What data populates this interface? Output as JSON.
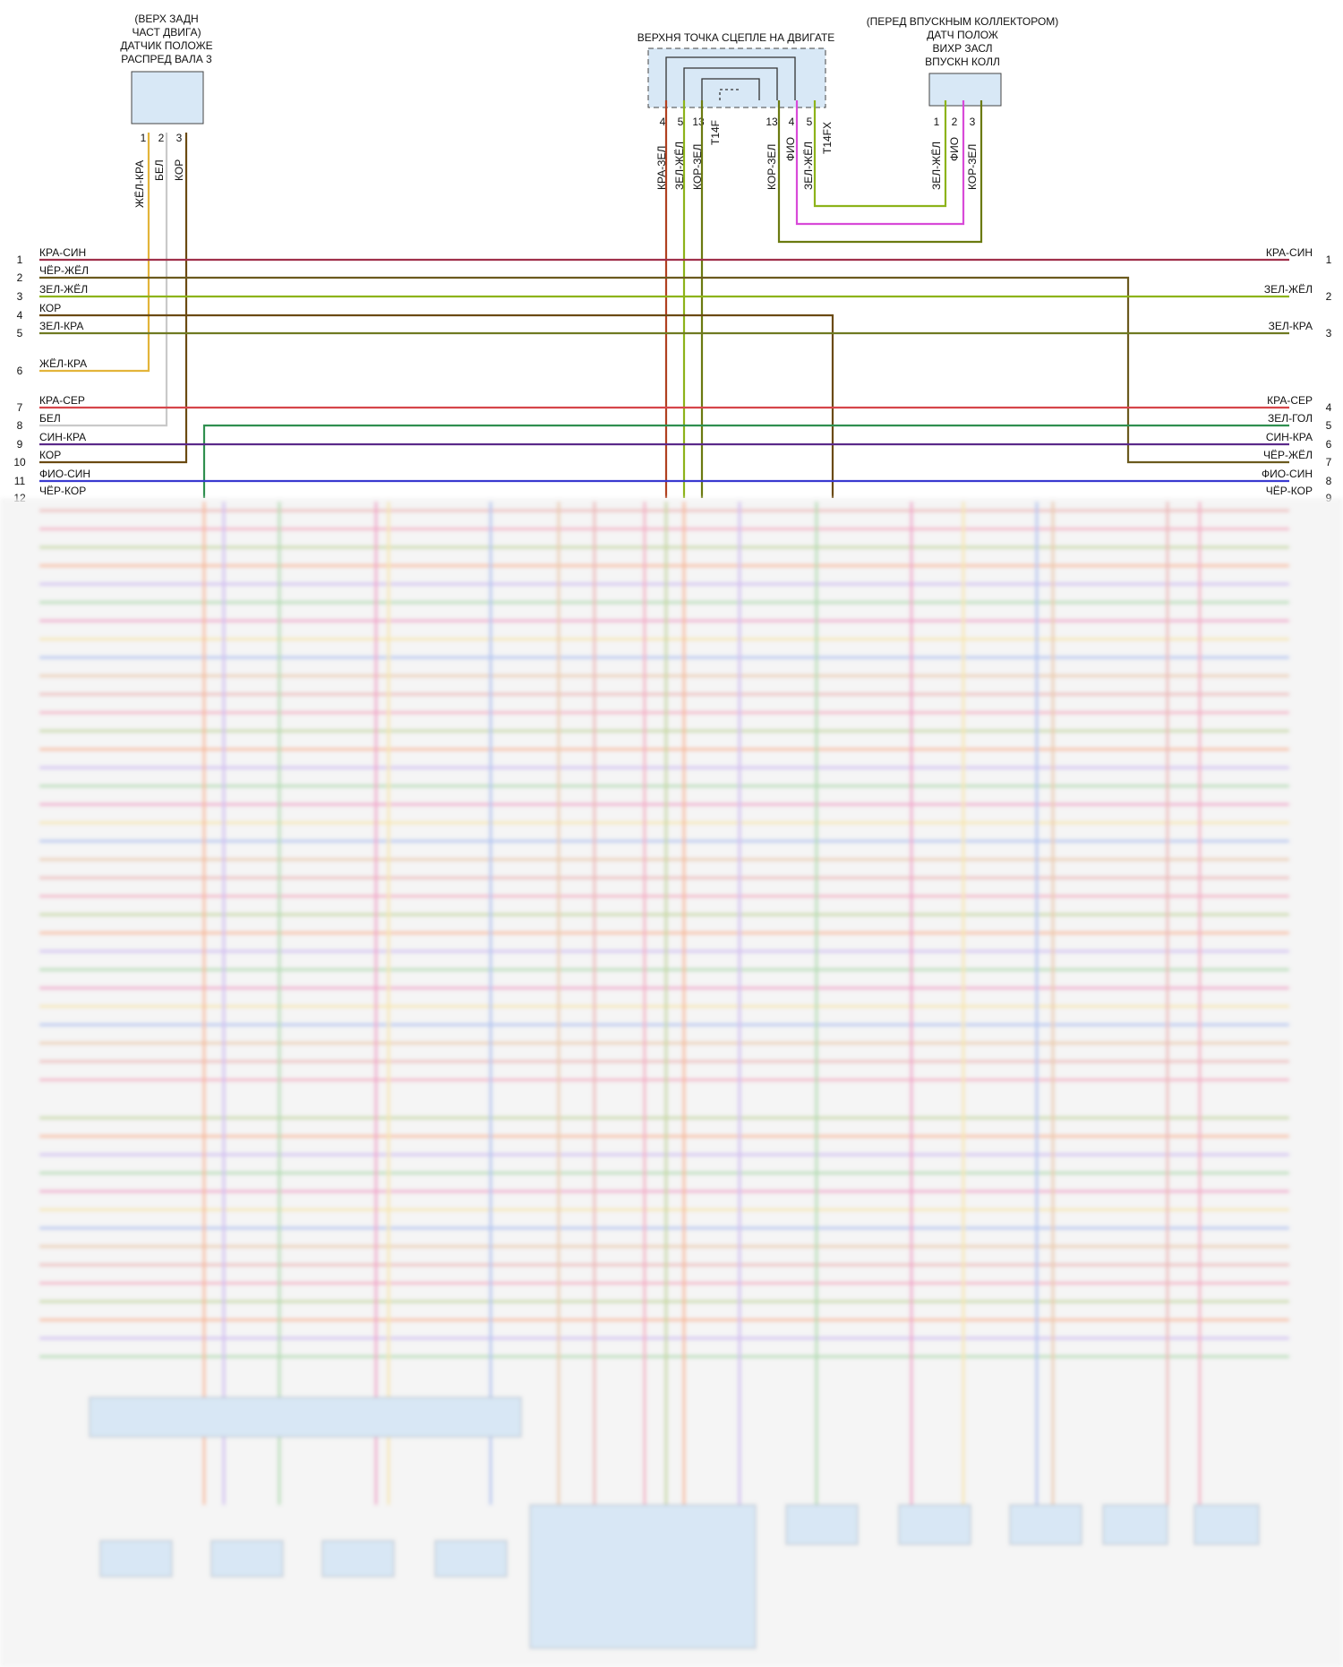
{
  "components": {
    "cam_sensor": {
      "label_lines": [
        "(ВЕРХ ЗАДН",
        "ЧАСТ ДВИГА)",
        "ДАТЧИК ПОЛОЖЕ",
        "РАСПРЕД ВАЛА 3"
      ],
      "pins": [
        "1",
        "2",
        "3"
      ],
      "wires": [
        "ЖЁЛ-КРА",
        "БЕЛ",
        "КОР"
      ]
    },
    "upper_ground": {
      "label": "ВЕРХНЯ ТОЧКА СЦЕПЛЕ НА ДВИГАТЕ",
      "left_pins": [
        "4",
        "5",
        "13"
      ],
      "left_wires": [
        "КРА-ЗЕЛ",
        "ЗЕЛ-ЖЁЛ",
        "КОР-ЗЕЛ"
      ],
      "left_connector": "T14F",
      "right_pins": [
        "13",
        "4",
        "5"
      ],
      "right_wires": [
        "КОР-ЗЕЛ",
        "ФИО",
        "ЗЕЛ-ЖЁЛ"
      ],
      "right_connector": "T14FX"
    },
    "swirl_sensor": {
      "label_lines": [
        "(ПЕРЕД ВПУСКНЫМ КОЛЛЕКТОРОМ)",
        "ДАТЧ ПОЛОЖ",
        "ВИХР ЗАСЛ",
        "ВПУСКН КОЛЛ"
      ],
      "pins": [
        "1",
        "2",
        "3"
      ],
      "wires": [
        "ЗЕЛ-ЖЁЛ",
        "ФИО",
        "КОР-ЗЕЛ"
      ]
    }
  },
  "left_rows": [
    {
      "num": "1",
      "label": "КРА-СИН",
      "color": "#a0304a"
    },
    {
      "num": "2",
      "label": "ЧЁР-ЖЁЛ",
      "color": "#6b5a1e"
    },
    {
      "num": "3",
      "label": "ЗЕЛ-ЖЁЛ",
      "color": "#8db31a"
    },
    {
      "num": "4",
      "label": "КОР",
      "color": "#6b4a12"
    },
    {
      "num": "5",
      "label": "ЗЕЛ-КРА",
      "color": "#6f7a22"
    },
    {
      "num": "6",
      "label": "ЖЁЛ-КРА",
      "color": "#e3b43a"
    },
    {
      "num": "7",
      "label": "КРА-СЕР",
      "color": "#d6454a"
    },
    {
      "num": "8",
      "label": "БЕЛ",
      "color": "#c9c9c9"
    },
    {
      "num": "9",
      "label": "СИН-КРА",
      "color": "#5b2a8a"
    },
    {
      "num": "10",
      "label": "КОР",
      "color": "#6b4a12"
    },
    {
      "num": "11",
      "label": "ФИО-СИН",
      "color": "#3a3ad0"
    },
    {
      "num": "12",
      "label": "ЧЁР-КОР",
      "color": "#3a2a10"
    }
  ],
  "right_rows": [
    {
      "num": "1",
      "label": "КРА-СИН"
    },
    {
      "num": "2",
      "label": "ЗЕЛ-ЖЁЛ"
    },
    {
      "num": "3",
      "label": "ЗЕЛ-КРА"
    },
    {
      "num": "4",
      "label": "КРА-СЕР"
    },
    {
      "num": "5",
      "label": "ЗЕЛ-ГОЛ"
    },
    {
      "num": "6",
      "label": "СИН-КРА"
    },
    {
      "num": "7",
      "label": "ЧЁР-ЖЁЛ"
    },
    {
      "num": "8",
      "label": "ФИО-СИН"
    },
    {
      "num": "9",
      "label": "ЧЁР-КОР"
    }
  ],
  "blurred_region_colors": [
    "#e8a8a8",
    "#f29ab8",
    "#b9cf86",
    "#f5a97a",
    "#c8b0ef",
    "#9fd49f",
    "#ee8ec0",
    "#f4e19a",
    "#9fb8ee",
    "#e7c09a"
  ]
}
